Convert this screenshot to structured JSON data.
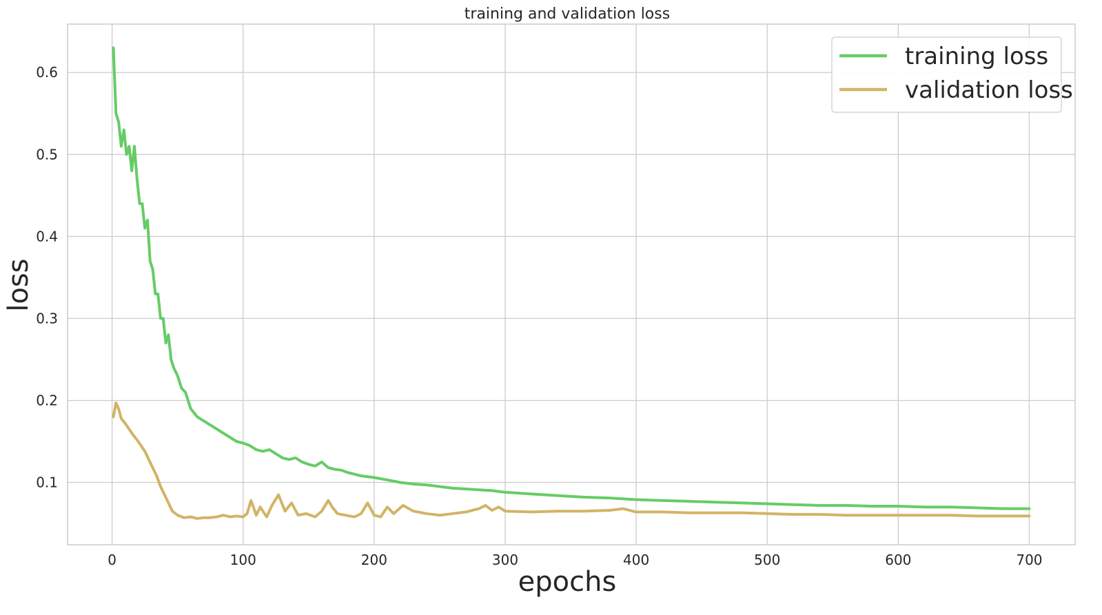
{
  "chart_data": {
    "type": "line",
    "title": "training and validation loss",
    "xlabel": "epochs",
    "ylabel": "loss",
    "xlim": [
      -34,
      735
    ],
    "ylim": [
      0.024,
      0.659
    ],
    "xticks": [
      0,
      100,
      200,
      300,
      400,
      500,
      600,
      700
    ],
    "yticks": [
      0.1,
      0.2,
      0.3,
      0.4,
      0.5,
      0.6
    ],
    "grid": true,
    "legend_position": "top-right",
    "series": [
      {
        "name": "training loss",
        "color": "#66cc66",
        "x": [
          1,
          3,
          5,
          7,
          9,
          11,
          13,
          15,
          17,
          19,
          21,
          23,
          25,
          27,
          29,
          31,
          33,
          35,
          37,
          39,
          41,
          43,
          45,
          47,
          50,
          53,
          56,
          60,
          65,
          70,
          75,
          80,
          85,
          90,
          95,
          100,
          105,
          110,
          115,
          120,
          125,
          130,
          135,
          140,
          145,
          150,
          155,
          160,
          165,
          170,
          175,
          180,
          190,
          200,
          210,
          220,
          230,
          240,
          250,
          260,
          270,
          280,
          290,
          300,
          320,
          340,
          360,
          380,
          400,
          420,
          440,
          460,
          480,
          500,
          520,
          540,
          560,
          580,
          600,
          620,
          640,
          660,
          680,
          700
        ],
        "y": [
          0.63,
          0.55,
          0.54,
          0.51,
          0.53,
          0.5,
          0.51,
          0.48,
          0.51,
          0.47,
          0.44,
          0.44,
          0.41,
          0.42,
          0.37,
          0.36,
          0.33,
          0.33,
          0.3,
          0.3,
          0.27,
          0.28,
          0.25,
          0.24,
          0.23,
          0.215,
          0.21,
          0.19,
          0.18,
          0.175,
          0.17,
          0.165,
          0.16,
          0.155,
          0.15,
          0.148,
          0.145,
          0.14,
          0.138,
          0.14,
          0.135,
          0.13,
          0.128,
          0.13,
          0.125,
          0.122,
          0.12,
          0.125,
          0.118,
          0.116,
          0.115,
          0.112,
          0.108,
          0.106,
          0.103,
          0.1,
          0.098,
          0.097,
          0.095,
          0.093,
          0.092,
          0.091,
          0.09,
          0.088,
          0.086,
          0.084,
          0.082,
          0.081,
          0.079,
          0.078,
          0.077,
          0.076,
          0.075,
          0.074,
          0.073,
          0.072,
          0.072,
          0.071,
          0.071,
          0.07,
          0.07,
          0.069,
          0.068,
          0.068
        ]
      },
      {
        "name": "validation loss",
        "color": "#d2b466",
        "x": [
          1,
          3,
          5,
          7,
          10,
          13,
          16,
          19,
          22,
          25,
          28,
          31,
          34,
          37,
          40,
          43,
          46,
          50,
          55,
          60,
          65,
          70,
          75,
          80,
          85,
          90,
          95,
          100,
          103,
          106,
          110,
          113,
          118,
          122,
          127,
          132,
          137,
          142,
          148,
          155,
          160,
          165,
          168,
          172,
          178,
          185,
          190,
          195,
          200,
          205,
          210,
          215,
          222,
          230,
          240,
          250,
          260,
          270,
          280,
          285,
          290,
          295,
          300,
          320,
          340,
          360,
          380,
          390,
          400,
          420,
          440,
          460,
          480,
          500,
          520,
          540,
          560,
          580,
          600,
          620,
          640,
          660,
          680,
          700
        ],
        "y": [
          0.18,
          0.197,
          0.19,
          0.178,
          0.172,
          0.165,
          0.158,
          0.152,
          0.145,
          0.138,
          0.128,
          0.118,
          0.108,
          0.095,
          0.085,
          0.075,
          0.065,
          0.06,
          0.057,
          0.058,
          0.056,
          0.057,
          0.057,
          0.058,
          0.06,
          0.058,
          0.059,
          0.058,
          0.062,
          0.078,
          0.06,
          0.07,
          0.058,
          0.072,
          0.085,
          0.065,
          0.075,
          0.06,
          0.062,
          0.058,
          0.065,
          0.078,
          0.07,
          0.062,
          0.06,
          0.058,
          0.062,
          0.075,
          0.06,
          0.058,
          0.07,
          0.062,
          0.072,
          0.065,
          0.062,
          0.06,
          0.062,
          0.064,
          0.068,
          0.072,
          0.066,
          0.07,
          0.065,
          0.064,
          0.065,
          0.065,
          0.066,
          0.068,
          0.064,
          0.064,
          0.063,
          0.063,
          0.063,
          0.062,
          0.061,
          0.061,
          0.06,
          0.06,
          0.06,
          0.06,
          0.06,
          0.059,
          0.059,
          0.059
        ]
      }
    ]
  }
}
